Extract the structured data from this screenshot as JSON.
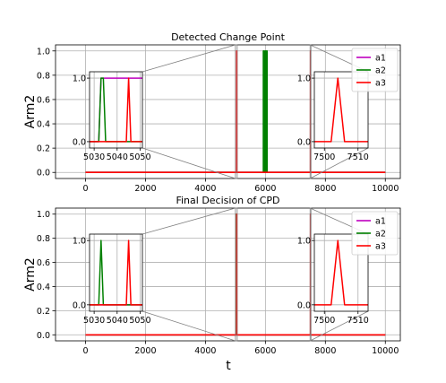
{
  "figure": {
    "xlabel": "t"
  },
  "chart_data": [
    {
      "type": "line",
      "title": "Detected Change Point",
      "xlabel": "",
      "ylabel": "Arm2",
      "xlim": [
        -1000,
        10500
      ],
      "ylim": [
        -0.05,
        1.05
      ],
      "xticks": [
        "0",
        "2000",
        "4000",
        "6000",
        "8000",
        "10000"
      ],
      "yticks": [
        "0.0",
        "0.2",
        "0.4",
        "0.6",
        "0.8",
        "1.0"
      ],
      "legend": "top-right",
      "grid": true,
      "series": [
        {
          "name": "a1",
          "color": "#bf00bf",
          "x": [
            0,
            10000
          ],
          "y": [
            0,
            0
          ]
        },
        {
          "name": "a2",
          "color": "#008000",
          "x": [
            0,
            5932,
            5932,
            5950,
            5950,
            5985,
            5985,
            6005,
            6005,
            6038,
            6038,
            6056,
            6056,
            10000
          ],
          "y": [
            0,
            0,
            1,
            1,
            0,
            0,
            1,
            1,
            0,
            0,
            1,
            1,
            0,
            0
          ]
        },
        {
          "name": "a3",
          "color": "#ff0000",
          "x": [
            0,
            5043,
            5045,
            5047,
            7502,
            7504,
            7506,
            10000
          ],
          "y": [
            0,
            0,
            1,
            0,
            0,
            1,
            0,
            0
          ]
        }
      ],
      "insets": [
        {
          "xlim": [
            5028,
            5051
          ],
          "ylim": [
            -0.1,
            1.1
          ],
          "source_x": [
            5000,
            5060
          ],
          "source_y": [
            -0.05,
            1.05
          ],
          "xticks": [
            "5030",
            "5040",
            "5050"
          ],
          "yticks": [
            "0.0",
            "1.0"
          ],
          "series": [
            {
              "name": "a1",
              "color": "#bf00bf",
              "x": [
                5028,
                5032,
                5033,
                5051
              ],
              "y": [
                0,
                0,
                1,
                1
              ]
            },
            {
              "name": "a2",
              "color": "#008000",
              "x": [
                5028,
                5032,
                5033,
                5034,
                5035,
                5051
              ],
              "y": [
                0,
                0,
                1,
                1,
                0,
                0
              ]
            },
            {
              "name": "a3",
              "color": "#ff0000",
              "x": [
                5028,
                5044,
                5045,
                5046,
                5051
              ],
              "y": [
                0,
                0,
                1,
                0,
                0
              ]
            }
          ]
        },
        {
          "xlim": [
            7497,
            7513
          ],
          "ylim": [
            -0.1,
            1.1
          ],
          "source_x": [
            7490,
            7515
          ],
          "source_y": [
            -0.05,
            1.05
          ],
          "xticks": [
            "7500",
            "7510"
          ],
          "yticks": [
            "0.0",
            "1.0"
          ],
          "series": [
            {
              "name": "a3",
              "color": "#ff0000",
              "x": [
                7497,
                7502,
                7504,
                7506,
                7513
              ],
              "y": [
                0,
                0,
                1,
                0,
                0
              ]
            }
          ]
        }
      ]
    },
    {
      "type": "line",
      "title": "Final Decision of CPD",
      "xlabel": "t",
      "ylabel": "Arm2",
      "xlim": [
        -1000,
        10500
      ],
      "ylim": [
        -0.05,
        1.05
      ],
      "xticks": [
        "0",
        "2000",
        "4000",
        "6000",
        "8000",
        "10000"
      ],
      "yticks": [
        "0.0",
        "0.2",
        "0.4",
        "0.6",
        "0.8",
        "1.0"
      ],
      "legend": "top-right",
      "grid": true,
      "series": [
        {
          "name": "a1",
          "color": "#bf00bf",
          "x": [
            0,
            10000
          ],
          "y": [
            0,
            0
          ]
        },
        {
          "name": "a2",
          "color": "#008000",
          "x": [
            0,
            5033,
            5034,
            5035,
            10000
          ],
          "y": [
            0,
            0,
            1,
            0,
            0
          ]
        },
        {
          "name": "a3",
          "color": "#ff0000",
          "x": [
            0,
            5043,
            5045,
            5047,
            7502,
            7504,
            7506,
            10000
          ],
          "y": [
            0,
            0,
            1,
            0,
            0,
            1,
            0,
            0
          ]
        }
      ],
      "insets": [
        {
          "xlim": [
            5028,
            5051
          ],
          "ylim": [
            -0.1,
            1.1
          ],
          "source_x": [
            5000,
            5060
          ],
          "source_y": [
            -0.05,
            1.05
          ],
          "xticks": [
            "5030",
            "5040",
            "5050"
          ],
          "yticks": [
            "0.0",
            "1.0"
          ],
          "series": [
            {
              "name": "a1",
              "color": "#bf00bf",
              "x": [
                5028,
                5051
              ],
              "y": [
                0,
                0
              ]
            },
            {
              "name": "a2",
              "color": "#008000",
              "x": [
                5028,
                5032,
                5033,
                5034,
                5051
              ],
              "y": [
                0,
                0,
                1,
                0,
                0
              ]
            },
            {
              "name": "a3",
              "color": "#ff0000",
              "x": [
                5028,
                5044,
                5045,
                5046,
                5051
              ],
              "y": [
                0,
                0,
                1,
                0,
                0
              ]
            }
          ]
        },
        {
          "xlim": [
            7497,
            7513
          ],
          "ylim": [
            -0.1,
            1.1
          ],
          "source_x": [
            7490,
            7515
          ],
          "source_y": [
            -0.05,
            1.05
          ],
          "xticks": [
            "7500",
            "7510"
          ],
          "yticks": [
            "0.0",
            "1.0"
          ],
          "series": [
            {
              "name": "a3",
              "color": "#ff0000",
              "x": [
                7497,
                7502,
                7504,
                7506,
                7513
              ],
              "y": [
                0,
                0,
                1,
                0,
                0
              ]
            }
          ]
        }
      ]
    }
  ]
}
